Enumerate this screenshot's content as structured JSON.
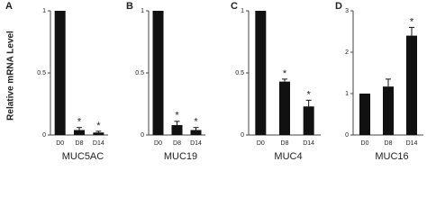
{
  "chart_data": [
    {
      "type": "bar",
      "panel": "A",
      "ylabel": "Relative mRNA Level",
      "title": "MUC5AC",
      "categories": [
        "D0",
        "D8",
        "D14"
      ],
      "values": [
        1,
        0.04,
        0.02
      ],
      "errors": [
        null,
        0.02,
        0.01
      ],
      "significance": [
        null,
        "*",
        "*"
      ],
      "color": "#111111",
      "ylim": [
        0,
        1
      ],
      "yticks": [
        0,
        0.5,
        1
      ]
    },
    {
      "type": "bar",
      "panel": "B",
      "title": "MUC19",
      "categories": [
        "D0",
        "D8",
        "D14"
      ],
      "values": [
        1,
        0.08,
        0.04
      ],
      "errors": [
        null,
        0.03,
        0.02
      ],
      "significance": [
        null,
        "*",
        "*"
      ],
      "color": "#111111",
      "ylim": [
        0,
        1
      ],
      "yticks": [
        0,
        0.5,
        1
      ]
    },
    {
      "type": "bar",
      "panel": "C",
      "title": "MUC4",
      "categories": [
        "D0",
        "D8",
        "D14"
      ],
      "values": [
        1,
        0.43,
        0.23
      ],
      "errors": [
        null,
        0.02,
        0.05
      ],
      "significance": [
        null,
        "*",
        "*"
      ],
      "color": "#111111",
      "ylim": [
        0,
        1
      ],
      "yticks": [
        0,
        0.5,
        1
      ]
    },
    {
      "type": "bar",
      "panel": "D",
      "title": "MUC16",
      "categories": [
        "D0",
        "D8",
        "D14"
      ],
      "values": [
        1,
        1.17,
        2.4
      ],
      "errors": [
        null,
        0.18,
        0.2
      ],
      "significance": [
        null,
        null,
        "*"
      ],
      "color": "#111111",
      "ylim": [
        0,
        3
      ],
      "yticks": [
        0,
        1,
        2,
        3
      ]
    }
  ]
}
